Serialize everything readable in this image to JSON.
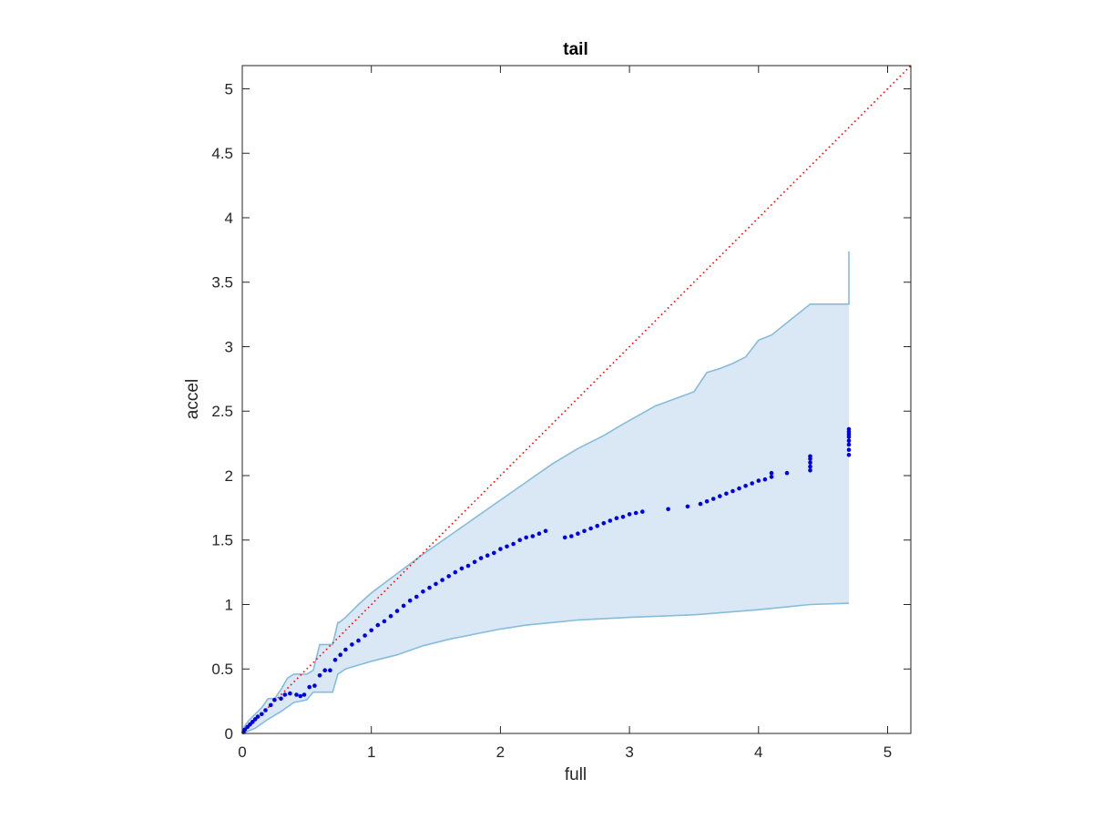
{
  "chart_data": {
    "type": "scatter",
    "title": "tail",
    "xlabel": "full",
    "ylabel": "accel",
    "xlim": [
      0,
      5.18
    ],
    "ylim": [
      0,
      5.18
    ],
    "xticks": [
      0,
      1,
      2,
      3,
      4,
      5
    ],
    "xtick_labels": [
      "0",
      "1",
      "2",
      "3",
      "4",
      "5"
    ],
    "yticks": [
      0,
      0.5,
      1,
      1.5,
      2,
      2.5,
      3,
      3.5,
      4,
      4.5,
      5
    ],
    "ytick_labels": [
      "0",
      "0.5",
      "1",
      "1.5",
      "2",
      "2.5",
      "3",
      "3.5",
      "4",
      "4.5",
      "5"
    ],
    "grid": false,
    "colors": {
      "points": "#0000e6",
      "band_fill": "#d9e8f4",
      "band_edge": "#86bcdb",
      "reference_line": "#ff0000",
      "axes": "#262626"
    },
    "reference_line": {
      "style": "dotted",
      "x": [
        0,
        5.18
      ],
      "y": [
        0,
        5.18
      ]
    },
    "band_upper": {
      "x": [
        0,
        0.02,
        0.05,
        0.1,
        0.15,
        0.2,
        0.25,
        0.3,
        0.35,
        0.4,
        0.45,
        0.5,
        0.55,
        0.6,
        0.65,
        0.7,
        0.74,
        0.75,
        0.8,
        0.9,
        1.0,
        1.2,
        1.4,
        1.6,
        1.8,
        2.0,
        2.2,
        2.4,
        2.6,
        2.8,
        2.95,
        3.2,
        3.5,
        3.6,
        3.7,
        3.8,
        3.9,
        4.0,
        4.1,
        4.4,
        4.7,
        4.7
      ],
      "y": [
        0,
        0.06,
        0.1,
        0.15,
        0.2,
        0.27,
        0.27,
        0.34,
        0.43,
        0.46,
        0.46,
        0.46,
        0.49,
        0.69,
        0.69,
        0.69,
        0.86,
        0.86,
        0.9,
        1.0,
        1.09,
        1.24,
        1.39,
        1.53,
        1.67,
        1.81,
        1.95,
        2.09,
        2.21,
        2.31,
        2.4,
        2.54,
        2.65,
        2.8,
        2.83,
        2.87,
        2.92,
        3.05,
        3.09,
        3.33,
        3.33,
        3.74
      ]
    },
    "band_lower": {
      "x": [
        0,
        0.1,
        0.2,
        0.3,
        0.4,
        0.5,
        0.55,
        0.6,
        0.7,
        0.74,
        0.8,
        1.0,
        1.2,
        1.4,
        1.6,
        1.8,
        2.0,
        2.2,
        2.4,
        2.6,
        2.8,
        3.0,
        3.5,
        4.0,
        4.4,
        4.7
      ],
      "y": [
        0,
        0.04,
        0.11,
        0.17,
        0.24,
        0.26,
        0.32,
        0.32,
        0.32,
        0.46,
        0.5,
        0.56,
        0.61,
        0.68,
        0.73,
        0.77,
        0.81,
        0.84,
        0.86,
        0.88,
        0.89,
        0.9,
        0.92,
        0.96,
        1.0,
        1.01
      ]
    },
    "series": [
      {
        "x": [
          0.01,
          0.02,
          0.04,
          0.06,
          0.08,
          0.1,
          0.12,
          0.15,
          0.18,
          0.22,
          0.25,
          0.3,
          0.33,
          0.37,
          0.42,
          0.45,
          0.48,
          0.52,
          0.56,
          0.6,
          0.64,
          0.68,
          0.72,
          0.76,
          0.8,
          0.85,
          0.9,
          0.95,
          1.0,
          1.05,
          1.1,
          1.15,
          1.2,
          1.25,
          1.3,
          1.35,
          1.4,
          1.45,
          1.5,
          1.55,
          1.6,
          1.65,
          1.7,
          1.75,
          1.8,
          1.85,
          1.9,
          1.95,
          2.0,
          2.05,
          2.1,
          2.15,
          2.2,
          2.25,
          2.3,
          2.35,
          2.5,
          2.55,
          2.6,
          2.65,
          2.7,
          2.75,
          2.8,
          2.85,
          2.9,
          2.95,
          3.0,
          3.05,
          3.1,
          3.3,
          3.45,
          3.55,
          3.6,
          3.65,
          3.7,
          3.75,
          3.8,
          3.85,
          3.9,
          3.95,
          4.0,
          4.05,
          4.1,
          4.1,
          4.22,
          4.4,
          4.4,
          4.4,
          4.4,
          4.4,
          4.7,
          4.7,
          4.7,
          4.7,
          4.7,
          4.7,
          4.7,
          4.7
        ],
        "y": [
          0.01,
          0.03,
          0.05,
          0.07,
          0.09,
          0.11,
          0.13,
          0.15,
          0.18,
          0.22,
          0.26,
          0.27,
          0.3,
          0.31,
          0.3,
          0.29,
          0.3,
          0.36,
          0.37,
          0.45,
          0.49,
          0.49,
          0.57,
          0.61,
          0.65,
          0.69,
          0.72,
          0.76,
          0.8,
          0.84,
          0.87,
          0.91,
          0.95,
          0.99,
          1.03,
          1.06,
          1.1,
          1.13,
          1.16,
          1.19,
          1.22,
          1.25,
          1.28,
          1.3,
          1.33,
          1.36,
          1.38,
          1.4,
          1.43,
          1.45,
          1.47,
          1.5,
          1.52,
          1.53,
          1.55,
          1.57,
          1.52,
          1.53,
          1.55,
          1.57,
          1.59,
          1.61,
          1.63,
          1.65,
          1.67,
          1.68,
          1.7,
          1.71,
          1.72,
          1.74,
          1.76,
          1.78,
          1.8,
          1.82,
          1.84,
          1.86,
          1.88,
          1.9,
          1.92,
          1.94,
          1.96,
          1.97,
          1.99,
          2.02,
          2.02,
          2.04,
          2.07,
          2.1,
          2.13,
          2.15,
          2.16,
          2.2,
          2.24,
          2.27,
          2.3,
          2.32,
          2.34,
          2.36
        ]
      }
    ]
  }
}
